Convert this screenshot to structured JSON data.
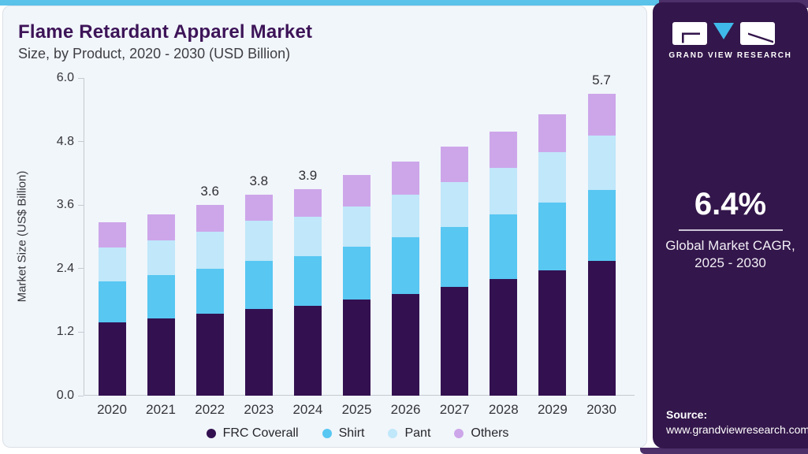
{
  "chart": {
    "title": "Flame Retardant Apparel Market",
    "subtitle": "Size, by Product, 2020 - 2030 (USD Billion)",
    "ylabel": "Market Size (US$ Billion)"
  },
  "chart_data": {
    "type": "bar",
    "stacked": true,
    "title": "Flame Retardant Apparel Market Size, by Product, 2020 - 2030 (USD Billion)",
    "xlabel": "",
    "ylabel": "Market Size (US$ Billion)",
    "ylim": [
      0,
      6.0
    ],
    "grid": false,
    "legend_position": "bottom",
    "categories": [
      "2020",
      "2021",
      "2022",
      "2023",
      "2024",
      "2025",
      "2026",
      "2027",
      "2028",
      "2029",
      "2030"
    ],
    "series": [
      {
        "name": "FRC Coverall",
        "color": "#331151",
        "values": [
          1.38,
          1.46,
          1.55,
          1.64,
          1.7,
          1.81,
          1.92,
          2.05,
          2.2,
          2.37,
          2.54
        ]
      },
      {
        "name": "Shirt",
        "color": "#58C7F2",
        "values": [
          0.78,
          0.82,
          0.85,
          0.9,
          0.93,
          1.0,
          1.07,
          1.13,
          1.22,
          1.28,
          1.35
        ]
      },
      {
        "name": "Pant",
        "color": "#C0E7FA",
        "values": [
          0.64,
          0.66,
          0.7,
          0.76,
          0.75,
          0.77,
          0.8,
          0.86,
          0.88,
          0.95,
          1.03
        ]
      },
      {
        "name": "Others",
        "color": "#CDA6EA",
        "values": [
          0.47,
          0.49,
          0.5,
          0.5,
          0.52,
          0.59,
          0.63,
          0.66,
          0.69,
          0.72,
          0.78
        ]
      }
    ],
    "total_labels": [
      "",
      "",
      "3.6",
      "3.8",
      "3.9",
      "",
      "",
      "",
      "",
      "",
      "5.7"
    ],
    "y_ticks": [
      "0.0",
      "1.2",
      "2.4",
      "3.6",
      "4.8",
      "6.0"
    ]
  },
  "sidebar": {
    "brand": "GRAND VIEW RESEARCH",
    "cagr_value": "6.4%",
    "cagr_caption_line1": "Global Market CAGR,",
    "cagr_caption_line2": "2025 - 2030",
    "source_label": "Source:",
    "source_url": "www.grandviewresearch.com"
  },
  "colors": {
    "accent_blue": "#5BC2E9",
    "logo_triangle_blue": "#3FB9E9",
    "sidebar_purple": "#33164B",
    "sidebar_underlay": "#4D2F69",
    "card_bg": "#F1F6FA",
    "title_purple": "#3D1458",
    "axis_gray": "#C5CAD2"
  }
}
